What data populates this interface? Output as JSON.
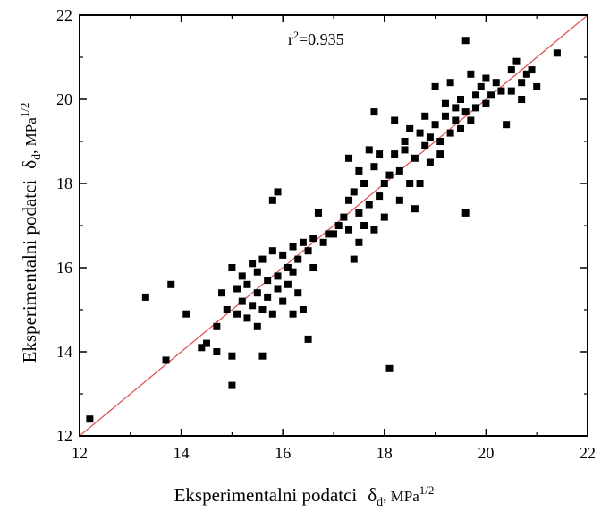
{
  "chart_data": {
    "type": "scatter",
    "title": "",
    "annotation": {
      "prefix": "r",
      "superscript": "2",
      "suffix": "=0.935"
    },
    "xlabel": {
      "text": "Eksperimentalni podatci",
      "symbol": "δ",
      "subscript": "d",
      "unit": ", MPa",
      "unit_sup": "1/2"
    },
    "ylabel": {
      "text": "Eksperimentalni podatci",
      "symbol": "δ",
      "subscript": "d",
      "unit": ", MPa",
      "unit_sup": "1/2"
    },
    "xlim": [
      12,
      22
    ],
    "ylim": [
      12,
      22
    ],
    "xticks": [
      "12",
      "14",
      "16",
      "18",
      "20",
      "22"
    ],
    "yticks": [
      "12",
      "14",
      "16",
      "18",
      "20",
      "22"
    ],
    "grid": false,
    "colors": {
      "points": "#000000",
      "fit_line": "#e05555",
      "axes": "#000000"
    },
    "fit_line": {
      "x": [
        12,
        22
      ],
      "y": [
        12,
        22
      ]
    },
    "points": [
      [
        12.2,
        12.4
      ],
      [
        13.3,
        15.3
      ],
      [
        13.7,
        13.8
      ],
      [
        13.8,
        15.6
      ],
      [
        14.1,
        14.9
      ],
      [
        14.4,
        14.1
      ],
      [
        14.5,
        14.2
      ],
      [
        14.7,
        14.0
      ],
      [
        14.7,
        14.6
      ],
      [
        14.8,
        15.4
      ],
      [
        14.9,
        15.0
      ],
      [
        15.0,
        13.9
      ],
      [
        15.0,
        13.2
      ],
      [
        15.0,
        16.0
      ],
      [
        15.1,
        15.5
      ],
      [
        15.1,
        14.9
      ],
      [
        15.2,
        15.8
      ],
      [
        15.2,
        15.2
      ],
      [
        15.3,
        15.6
      ],
      [
        15.3,
        14.8
      ],
      [
        15.4,
        16.1
      ],
      [
        15.4,
        15.1
      ],
      [
        15.5,
        15.9
      ],
      [
        15.5,
        15.4
      ],
      [
        15.5,
        14.6
      ],
      [
        15.6,
        16.2
      ],
      [
        15.6,
        15.0
      ],
      [
        15.6,
        13.9
      ],
      [
        15.7,
        15.7
      ],
      [
        15.7,
        15.3
      ],
      [
        15.8,
        16.4
      ],
      [
        15.8,
        14.9
      ],
      [
        15.8,
        17.6
      ],
      [
        15.9,
        15.8
      ],
      [
        15.9,
        15.5
      ],
      [
        15.9,
        17.8
      ],
      [
        16.0,
        16.3
      ],
      [
        16.0,
        15.2
      ],
      [
        16.1,
        16.0
      ],
      [
        16.1,
        15.6
      ],
      [
        16.2,
        16.5
      ],
      [
        16.2,
        14.9
      ],
      [
        16.2,
        15.9
      ],
      [
        16.3,
        16.2
      ],
      [
        16.3,
        15.4
      ],
      [
        16.4,
        16.6
      ],
      [
        16.4,
        15.0
      ],
      [
        16.5,
        14.3
      ],
      [
        16.5,
        16.4
      ],
      [
        16.6,
        16.0
      ],
      [
        16.6,
        16.7
      ],
      [
        16.7,
        17.3
      ],
      [
        16.8,
        16.6
      ],
      [
        16.9,
        16.8
      ],
      [
        17.0,
        16.8
      ],
      [
        17.1,
        17.0
      ],
      [
        17.2,
        17.2
      ],
      [
        17.3,
        16.9
      ],
      [
        17.3,
        17.6
      ],
      [
        17.3,
        18.6
      ],
      [
        17.4,
        16.2
      ],
      [
        17.4,
        17.8
      ],
      [
        17.5,
        17.3
      ],
      [
        17.5,
        18.3
      ],
      [
        17.5,
        16.6
      ],
      [
        17.6,
        17.0
      ],
      [
        17.6,
        18.0
      ],
      [
        17.7,
        17.5
      ],
      [
        17.7,
        18.8
      ],
      [
        17.8,
        16.9
      ],
      [
        17.8,
        18.4
      ],
      [
        17.8,
        19.7
      ],
      [
        17.9,
        17.7
      ],
      [
        17.9,
        18.7
      ],
      [
        18.0,
        18.0
      ],
      [
        18.0,
        17.2
      ],
      [
        18.1,
        18.2
      ],
      [
        18.1,
        13.6
      ],
      [
        18.2,
        18.7
      ],
      [
        18.2,
        19.5
      ],
      [
        18.3,
        18.3
      ],
      [
        18.3,
        17.6
      ],
      [
        18.4,
        18.8
      ],
      [
        18.4,
        19.0
      ],
      [
        18.5,
        18.0
      ],
      [
        18.5,
        19.3
      ],
      [
        18.6,
        17.4
      ],
      [
        18.6,
        18.6
      ],
      [
        18.7,
        19.2
      ],
      [
        18.7,
        18.0
      ],
      [
        18.8,
        18.9
      ],
      [
        18.8,
        19.6
      ],
      [
        18.9,
        18.5
      ],
      [
        18.9,
        19.1
      ],
      [
        19.0,
        19.4
      ],
      [
        19.0,
        20.3
      ],
      [
        19.1,
        19.0
      ],
      [
        19.1,
        18.7
      ],
      [
        19.2,
        19.6
      ],
      [
        19.2,
        19.9
      ],
      [
        19.3,
        20.4
      ],
      [
        19.3,
        19.2
      ],
      [
        19.4,
        19.8
      ],
      [
        19.4,
        19.5
      ],
      [
        19.5,
        20.0
      ],
      [
        19.5,
        19.3
      ],
      [
        19.6,
        17.3
      ],
      [
        19.6,
        19.7
      ],
      [
        19.6,
        21.4
      ],
      [
        19.7,
        20.6
      ],
      [
        19.7,
        19.5
      ],
      [
        19.8,
        20.1
      ],
      [
        19.8,
        19.8
      ],
      [
        19.9,
        20.3
      ],
      [
        20.0,
        19.9
      ],
      [
        20.0,
        20.5
      ],
      [
        20.1,
        20.1
      ],
      [
        20.2,
        20.4
      ],
      [
        20.3,
        20.2
      ],
      [
        20.4,
        19.4
      ],
      [
        20.5,
        20.7
      ],
      [
        20.5,
        20.2
      ],
      [
        20.6,
        20.9
      ],
      [
        20.7,
        20.0
      ],
      [
        20.7,
        20.4
      ],
      [
        20.8,
        20.6
      ],
      [
        20.9,
        20.7
      ],
      [
        21.0,
        20.3
      ],
      [
        21.4,
        21.1
      ]
    ]
  }
}
